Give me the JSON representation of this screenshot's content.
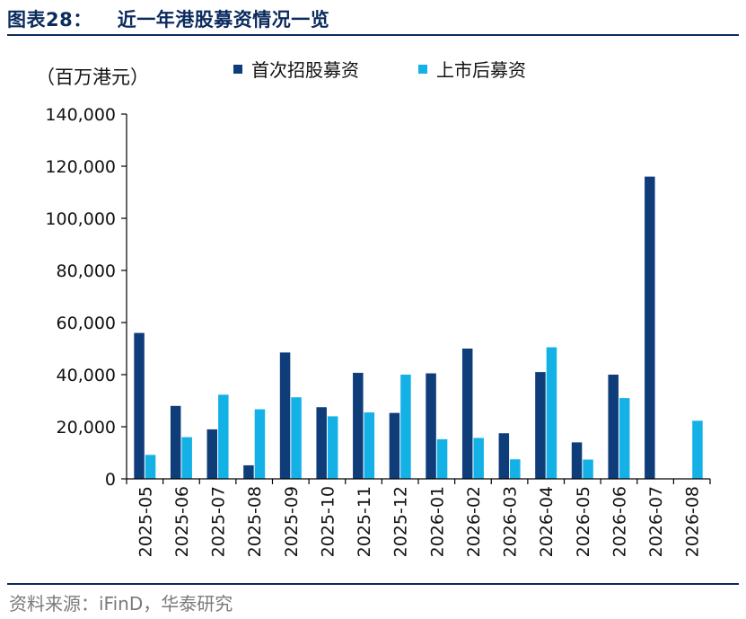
{
  "figure": {
    "label": "图表28：",
    "title": "近一年港股募资情况一览",
    "source": "资料来源：iFinD，华泰研究"
  },
  "chart_data": {
    "type": "bar",
    "unit_label": "（百万港元）",
    "categories": [
      "2025-05",
      "2025-06",
      "2025-07",
      "2025-08",
      "2025-09",
      "2025-10",
      "2025-11",
      "2025-12",
      "2026-01",
      "2026-02",
      "2026-03",
      "2026-04",
      "2026-05",
      "2026-06",
      "2026-07",
      "2026-08"
    ],
    "series": [
      {
        "name": "首次招股募资",
        "color": "#0f3d7a",
        "values": [
          56000,
          28000,
          19000,
          5200,
          48500,
          27500,
          40700,
          25300,
          40500,
          50000,
          17500,
          41000,
          14000,
          40000,
          116000,
          0
        ]
      },
      {
        "name": "上市后募资",
        "color": "#14b1e7",
        "values": [
          9200,
          16000,
          32300,
          26700,
          31300,
          24000,
          25500,
          40000,
          15200,
          15700,
          7500,
          50500,
          7400,
          31000,
          0,
          22300
        ]
      }
    ],
    "ylim": [
      0,
      140000
    ],
    "yticks": [
      0,
      20000,
      40000,
      60000,
      80000,
      100000,
      120000,
      140000
    ],
    "ytick_labels": [
      "0",
      "20,000",
      "40,000",
      "60,000",
      "80,000",
      "100,000",
      "120,000",
      "140,000"
    ],
    "legend_position": "top",
    "grid": false
  }
}
